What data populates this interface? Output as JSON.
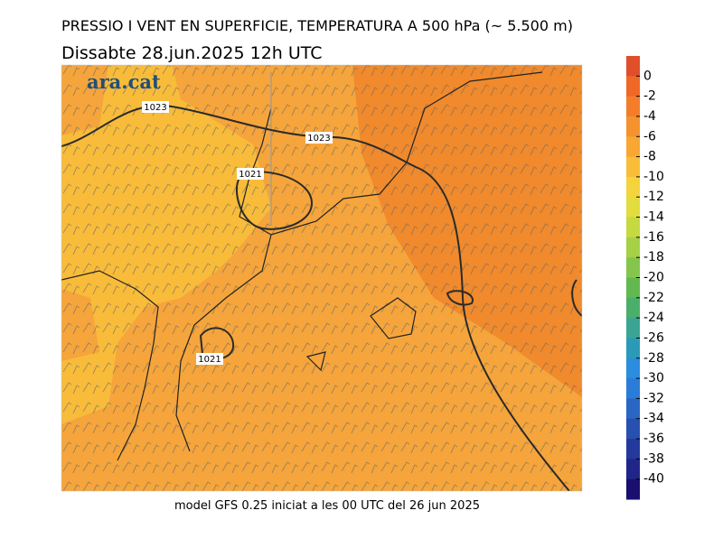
{
  "header": {
    "title": "PRESSIO I VENT EN SUPERFICIE, TEMPERATURA A 500 hPa (~ 5.500 m)",
    "date": "Dissabte   28.jun.2025  12h  UTC"
  },
  "logo": "ara.cat",
  "map": {
    "isobar_labels": [
      "1023",
      "1023",
      "1021",
      "1021"
    ]
  },
  "colorbar": {
    "ticks": [
      0,
      -2,
      -4,
      -6,
      -8,
      -10,
      -12,
      -14,
      -16,
      -18,
      -20,
      -22,
      -24,
      -26,
      -28,
      -30,
      -32,
      -34,
      -36,
      -38,
      -40
    ],
    "colors": [
      "#e04e2a",
      "#f06826",
      "#f47d2a",
      "#f5922e",
      "#f8a733",
      "#f9bd38",
      "#f3d43c",
      "#e2dc3e",
      "#c6d941",
      "#a6d146",
      "#84c64b",
      "#62b950",
      "#4aaf6a",
      "#3aa592",
      "#2b9ab6",
      "#2a8de0",
      "#2b7cd8",
      "#2a67c4",
      "#2750b0",
      "#233a9c",
      "#1f2688",
      "#1a0f6e"
    ]
  },
  "footer": "model GFS 0.25 iniciat a les 00 UTC del 26 jun 2025"
}
